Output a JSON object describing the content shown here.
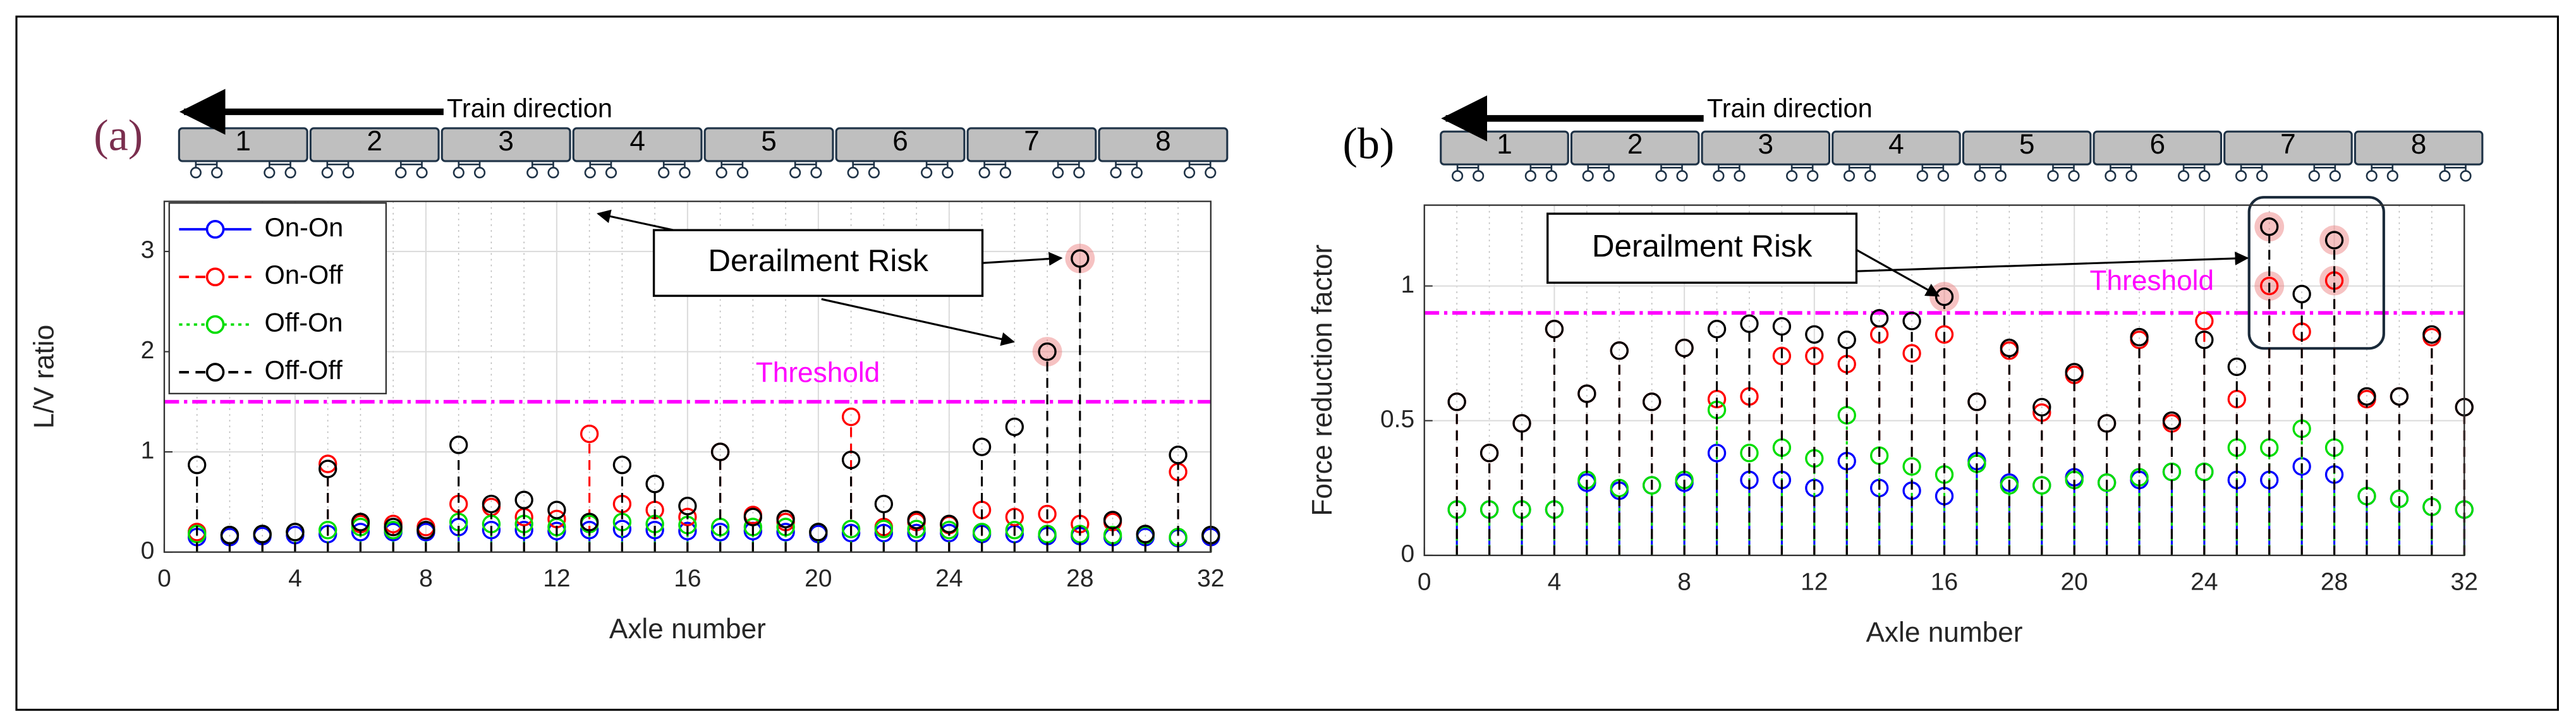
{
  "chart_data": [
    {
      "type": "stem",
      "panel_label": "(a)",
      "ylabel": "L/V ratio",
      "xlabel": "Axle number",
      "x": [
        1,
        2,
        3,
        4,
        5,
        6,
        7,
        8,
        9,
        10,
        11,
        12,
        13,
        14,
        15,
        16,
        17,
        18,
        19,
        20,
        21,
        22,
        23,
        24,
        25,
        26,
        27,
        28,
        29,
        30,
        31,
        32
      ],
      "xlim": [
        0,
        32
      ],
      "xticks": [
        0,
        4,
        8,
        12,
        16,
        20,
        24,
        28,
        32
      ],
      "ylim": [
        0,
        3.5
      ],
      "yticks": [
        0,
        1,
        2,
        3
      ],
      "grid": true,
      "legend": "upper left",
      "threshold": {
        "value": 1.5,
        "label": "Threshold",
        "color": "#ff00ff"
      },
      "annotation": "Derailment Risk",
      "train": {
        "label": "Train direction",
        "cars": [
          "1",
          "2",
          "3",
          "4",
          "5",
          "6",
          "7",
          "8"
        ]
      },
      "series": [
        {
          "name": "On-On",
          "color": "#0000ff",
          "linestyle": "solid",
          "values": [
            0.15,
            0.15,
            0.16,
            0.17,
            0.18,
            0.2,
            0.2,
            0.2,
            0.25,
            0.22,
            0.22,
            0.21,
            0.22,
            0.23,
            0.22,
            0.21,
            0.2,
            0.21,
            0.2,
            0.18,
            0.19,
            0.19,
            0.19,
            0.19,
            0.18,
            0.18,
            0.16,
            0.16,
            0.15,
            0.15,
            0.14,
            0.15
          ]
        },
        {
          "name": "On-Off",
          "color": "#ff0000",
          "linestyle": "dashed",
          "values": [
            0.2,
            0.17,
            0.18,
            0.2,
            0.88,
            0.28,
            0.28,
            0.25,
            0.48,
            0.45,
            0.35,
            0.33,
            1.18,
            0.48,
            0.42,
            0.35,
            1.0,
            0.37,
            0.3,
            0.2,
            1.35,
            0.25,
            0.3,
            0.27,
            0.42,
            0.35,
            0.38,
            0.28,
            0.3,
            0.18,
            0.8,
            0.17
          ]
        },
        {
          "name": "Off-On",
          "color": "#00dd00",
          "linestyle": "dotted",
          "values": [
            0.18,
            0.17,
            0.18,
            0.2,
            0.22,
            0.25,
            0.22,
            0.22,
            0.3,
            0.28,
            0.28,
            0.25,
            0.28,
            0.3,
            0.28,
            0.27,
            0.25,
            0.25,
            0.25,
            0.2,
            0.23,
            0.23,
            0.23,
            0.22,
            0.2,
            0.22,
            0.18,
            0.18,
            0.17,
            0.17,
            0.15,
            0.17
          ]
        },
        {
          "name": "Off-Off",
          "color": "#000000",
          "linestyle": "dashed",
          "values": [
            0.87,
            0.17,
            0.18,
            0.2,
            0.83,
            0.3,
            0.25,
            0.22,
            1.07,
            0.48,
            0.52,
            0.42,
            0.3,
            0.87,
            0.68,
            0.46,
            1.0,
            0.35,
            0.33,
            0.2,
            0.92,
            0.48,
            0.32,
            0.28,
            1.05,
            1.25,
            2.0,
            2.93,
            0.32,
            0.18,
            0.97,
            0.17
          ]
        }
      ],
      "highlight": [
        {
          "series": "Off-Off",
          "x": 27
        },
        {
          "series": "Off-Off",
          "x": 28
        }
      ]
    },
    {
      "type": "stem",
      "panel_label": "(b)",
      "ylabel": "Force reduction factor",
      "xlabel": "Axle number",
      "x": [
        1,
        2,
        3,
        4,
        5,
        6,
        7,
        8,
        9,
        10,
        11,
        12,
        13,
        14,
        15,
        16,
        17,
        18,
        19,
        20,
        21,
        22,
        23,
        24,
        25,
        26,
        27,
        28,
        29,
        30,
        31,
        32
      ],
      "xlim": [
        0,
        32
      ],
      "xticks": [
        0,
        4,
        8,
        12,
        16,
        20,
        24,
        28,
        32
      ],
      "ylim": [
        0,
        1.3
      ],
      "yticks": [
        0,
        0.5,
        1
      ],
      "grid": true,
      "threshold": {
        "value": 0.9,
        "label": "Threshold",
        "color": "#ff00ff"
      },
      "annotation": "Derailment Risk",
      "train": {
        "label": "Train direction",
        "cars": [
          "1",
          "2",
          "3",
          "4",
          "5",
          "6",
          "7",
          "8"
        ]
      },
      "series": [
        {
          "name": "On-On",
          "color": "#0000ff",
          "linestyle": "solid",
          "values": [
            0.17,
            0.17,
            0.17,
            0.17,
            0.27,
            0.24,
            0.26,
            0.27,
            0.38,
            0.28,
            0.28,
            0.25,
            0.35,
            0.25,
            0.24,
            0.22,
            0.35,
            0.27,
            0.26,
            0.29,
            0.27,
            0.28,
            0.31,
            0.31,
            0.28,
            0.28,
            0.33,
            0.3,
            0.22,
            0.21,
            0.18,
            0.17
          ]
        },
        {
          "name": "On-Off",
          "color": "#ff0000",
          "linestyle": "dashed",
          "values": [
            0.57,
            0.38,
            0.49,
            0.84,
            0.6,
            0.76,
            0.57,
            0.77,
            0.58,
            0.59,
            0.74,
            0.74,
            0.71,
            0.82,
            0.75,
            0.82,
            0.57,
            0.76,
            0.53,
            0.67,
            0.49,
            0.8,
            0.49,
            0.87,
            0.58,
            1.0,
            0.83,
            1.02,
            0.58,
            0.59,
            0.81,
            0.55
          ]
        },
        {
          "name": "Off-On",
          "color": "#00dd00",
          "linestyle": "dotted",
          "values": [
            0.17,
            0.17,
            0.17,
            0.17,
            0.28,
            0.25,
            0.26,
            0.28,
            0.54,
            0.38,
            0.4,
            0.36,
            0.52,
            0.37,
            0.33,
            0.3,
            0.34,
            0.26,
            0.26,
            0.28,
            0.27,
            0.29,
            0.31,
            0.31,
            0.4,
            0.4,
            0.47,
            0.4,
            0.22,
            0.21,
            0.18,
            0.17
          ]
        },
        {
          "name": "Off-Off",
          "color": "#000000",
          "linestyle": "dashed",
          "values": [
            0.57,
            0.38,
            0.49,
            0.84,
            0.6,
            0.76,
            0.57,
            0.77,
            0.84,
            0.86,
            0.85,
            0.82,
            0.8,
            0.88,
            0.87,
            0.96,
            0.57,
            0.77,
            0.55,
            0.68,
            0.49,
            0.81,
            0.5,
            0.8,
            0.7,
            1.22,
            0.97,
            1.17,
            0.59,
            0.59,
            0.82,
            0.55
          ]
        }
      ],
      "highlight": [
        {
          "series": "Off-Off",
          "x": 16
        },
        {
          "series": "Off-Off",
          "x": 26
        },
        {
          "series": "On-Off",
          "x": 26
        },
        {
          "series": "Off-Off",
          "x": 28
        },
        {
          "series": "On-Off",
          "x": 28
        }
      ]
    }
  ]
}
